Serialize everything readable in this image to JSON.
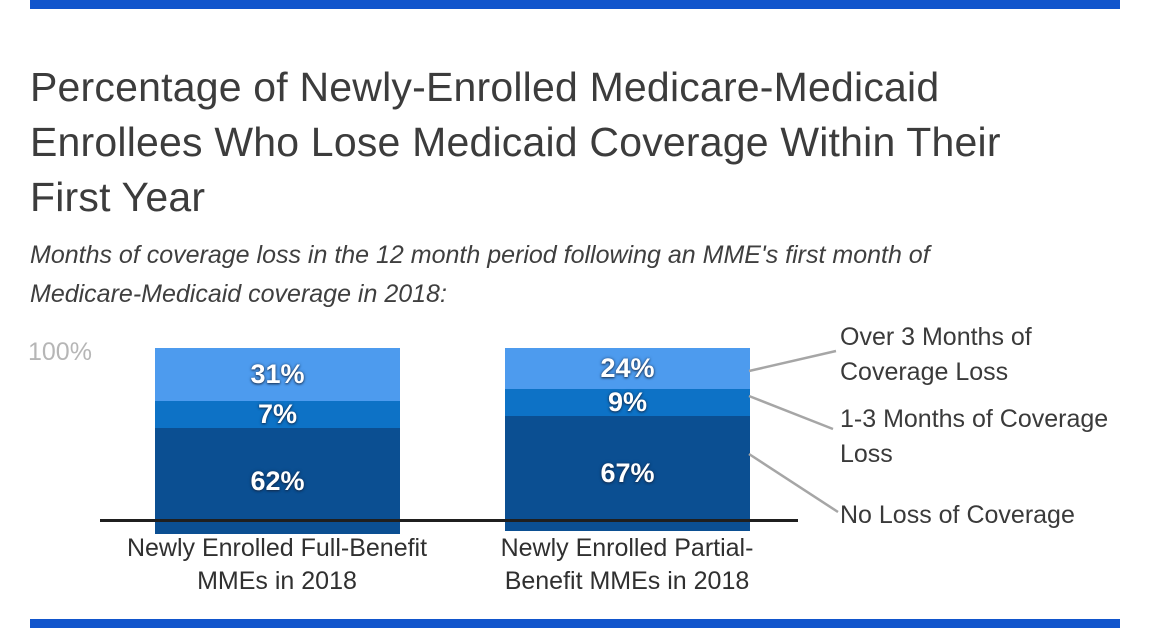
{
  "page": {
    "background": "#ffffff",
    "accent_bar_color": "#1155cc"
  },
  "header": {
    "title": "Percentage of Newly-Enrolled Medicare-Medicaid Enrollees Who Lose Medicaid Coverage Within Their First Year",
    "title_lines": [
      "Percentage of Newly-Enrolled Medicare-Medicaid",
      "Enrollees Who Lose Medicaid Coverage Within Their",
      "First Year"
    ],
    "subtitle": "Months of coverage loss in the 12 month period following an MME's first month of Medicare-Medicaid coverage in 2018:",
    "subtitle_lines": [
      "Months of coverage loss in the 12 month period following an MME's first month of",
      "Medicare-Medicaid coverage in 2018:"
    ]
  },
  "chart_data": {
    "type": "bar",
    "stacked": true,
    "title": "Percentage of Newly-Enrolled Medicare-Medicaid Enrollees Who Lose Medicaid Coverage Within Their First Year",
    "subtitle": "Months of coverage loss in the 12 month period following an MME's first month of Medicare-Medicaid coverage in 2018:",
    "categories": [
      "Newly Enrolled Full-Benefit MMEs in 2018",
      "Newly Enrolled Partial-Benefit MMEs in 2018"
    ],
    "category_label_lines": [
      [
        "Newly Enrolled Full-Benefit",
        "MMEs in 2018"
      ],
      [
        "Newly Enrolled Partial-",
        "Benefit MMEs in 2018"
      ]
    ],
    "series": [
      {
        "name": "Over 3 Months of Coverage Loss",
        "values": [
          31,
          24
        ],
        "color": "#4d9bee"
      },
      {
        "name": "1-3 Months of Coverage Loss",
        "values": [
          7,
          9
        ],
        "color": "#0d72c6"
      },
      {
        "name": "No Loss of Coverage",
        "values": [
          62,
          67
        ],
        "color": "#0b4f92"
      }
    ],
    "value_suffix": "%",
    "value_labels": [
      [
        "31%",
        "7%",
        "62%"
      ],
      [
        "24%",
        "9%",
        "67%"
      ]
    ],
    "ylim": [
      0,
      100
    ],
    "y_axis_tick": "100%",
    "grid": false,
    "legend_position": "right",
    "legend": [
      {
        "label": "Over 3 Months of Coverage Loss",
        "lines": [
          "Over 3 Months of",
          "Coverage Loss"
        ]
      },
      {
        "label": "1-3 Months of Coverage Loss",
        "lines": [
          "1-3 Months of Coverage",
          "Loss"
        ]
      },
      {
        "label": "No Loss of Coverage",
        "lines": [
          "No Loss of Coverage"
        ]
      }
    ],
    "leader_line_color": "#a6a6a6",
    "axis_line_color": "#1f1f1f"
  }
}
